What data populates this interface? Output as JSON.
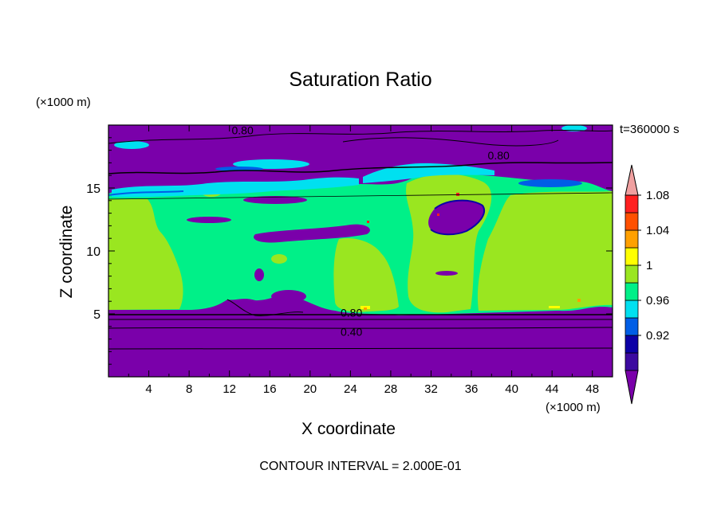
{
  "chart_data": {
    "type": "heatmap",
    "title": "Saturation Ratio",
    "xlabel": "X coordinate",
    "ylabel": "Z coordinate",
    "x_unit_label": "(×1000 m)",
    "z_unit_label": "(×1000 m)",
    "time_label": "t=360000 s",
    "footer": "CONTOUR INTERVAL = 2.000E-01",
    "xlim": [
      0,
      50
    ],
    "ylim": [
      0,
      20
    ],
    "x_ticks": [
      "4",
      "8",
      "12",
      "16",
      "20",
      "24",
      "28",
      "32",
      "36",
      "40",
      "44",
      "48"
    ],
    "y_ticks": [
      "5",
      "10",
      "15"
    ],
    "colorbar": {
      "labels": [
        "0.92",
        "0.96",
        "1",
        "1.04",
        "1.08"
      ],
      "bands": [
        {
          "range": "< 0.90",
          "color": "#7a00aa"
        },
        {
          "range": "0.90-0.92",
          "color": "#3c0aa0"
        },
        {
          "range": "0.92-0.94",
          "color": "#0c00a6"
        },
        {
          "range": "0.94-0.96",
          "color": "#005ee6"
        },
        {
          "range": "0.96-0.98",
          "color": "#00e0f0"
        },
        {
          "range": "0.98-1.00",
          "color": "#00f088"
        },
        {
          "range": "1.00-1.02",
          "color": "#9ae620"
        },
        {
          "range": "1.02-1.04",
          "color": "#ffff00"
        },
        {
          "range": "1.04-1.06",
          "color": "#ffa000"
        },
        {
          "range": "1.06-1.08",
          "color": "#ff5000"
        },
        {
          "range": "1.08-1.10",
          "color": "#ff2020"
        },
        {
          "range": "> 1.10",
          "color": "#f0a0a0"
        }
      ]
    },
    "contour_labels": [
      {
        "text": "0.80",
        "x": 13.3,
        "z": 19.4
      },
      {
        "text": "0.80",
        "x": 38.7,
        "z": 17.4
      },
      {
        "text": "0.80",
        "x": 24.1,
        "z": 4.9
      },
      {
        "text": "0.40",
        "x": 24.1,
        "z": 3.4
      }
    ]
  }
}
